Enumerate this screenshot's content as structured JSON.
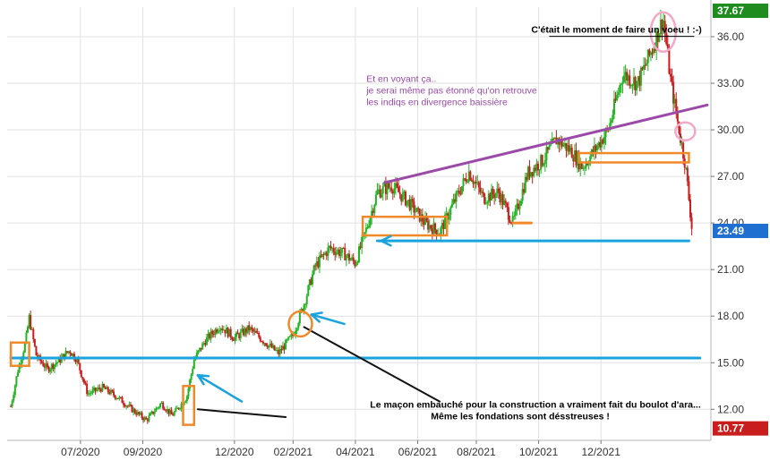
{
  "chart_data": {
    "type": "candlestick",
    "title": "",
    "xlabel": "",
    "ylabel": "",
    "ylim": [
      10.0,
      37.9
    ],
    "grid": true,
    "y_ticks": [
      12.0,
      15.0,
      18.0,
      21.0,
      24.0,
      27.0,
      30.0,
      33.0,
      36.0
    ],
    "y_tick_labels": [
      "12.00",
      "15.00",
      "18.00",
      "21.00",
      "24.00",
      "27.00",
      "30.00",
      "33.00",
      "36.00"
    ],
    "x_tick_labels": [
      "07/2020",
      "09/2020",
      "12/2020",
      "02/2021",
      "04/2021",
      "06/2021",
      "08/2021",
      "10/2021",
      "12/2021"
    ],
    "x_tick_months": [
      2020.5,
      2020.67,
      2020.92,
      2021.08,
      2021.25,
      2021.42,
      2021.58,
      2021.75,
      2021.92
    ],
    "x_range": [
      2020.3,
      2022.22
    ],
    "price_badges": [
      {
        "label": "37.67",
        "value": 37.67,
        "color": "#1e8c1e"
      },
      {
        "label": "23.49",
        "value": 23.49,
        "color": "#1f6fd1"
      },
      {
        "label": "10.77",
        "value": 10.77,
        "color": "#c81e1e"
      }
    ],
    "colors": {
      "up": "#22b422",
      "down": "#c81e1e",
      "support": "#1aa3dc",
      "trend": "#9b4aa8",
      "box": "#f0892a",
      "pink": "#f2a8c6"
    },
    "price_path": [
      {
        "t": 2020.31,
        "p": 12.2
      },
      {
        "t": 2020.33,
        "p": 14.6
      },
      {
        "t": 2020.35,
        "p": 16.3
      },
      {
        "t": 2020.36,
        "p": 17.9
      },
      {
        "t": 2020.38,
        "p": 15.4
      },
      {
        "t": 2020.41,
        "p": 14.6
      },
      {
        "t": 2020.44,
        "p": 15.1
      },
      {
        "t": 2020.47,
        "p": 15.8
      },
      {
        "t": 2020.49,
        "p": 15.2
      },
      {
        "t": 2020.52,
        "p": 13.0
      },
      {
        "t": 2020.56,
        "p": 13.4
      },
      {
        "t": 2020.6,
        "p": 12.8
      },
      {
        "t": 2020.64,
        "p": 12.0
      },
      {
        "t": 2020.68,
        "p": 11.3
      },
      {
        "t": 2020.72,
        "p": 12.4
      },
      {
        "t": 2020.75,
        "p": 11.6
      },
      {
        "t": 2020.79,
        "p": 12.8
      },
      {
        "t": 2020.81,
        "p": 15.2
      },
      {
        "t": 2020.84,
        "p": 16.4
      },
      {
        "t": 2020.88,
        "p": 17.4
      },
      {
        "t": 2020.92,
        "p": 16.6
      },
      {
        "t": 2020.96,
        "p": 17.2
      },
      {
        "t": 2021.0,
        "p": 16.4
      },
      {
        "t": 2021.04,
        "p": 15.6
      },
      {
        "t": 2021.08,
        "p": 16.8
      },
      {
        "t": 2021.11,
        "p": 18.8
      },
      {
        "t": 2021.14,
        "p": 21.2
      },
      {
        "t": 2021.18,
        "p": 22.4
      },
      {
        "t": 2021.22,
        "p": 22.0
      },
      {
        "t": 2021.25,
        "p": 21.4
      },
      {
        "t": 2021.28,
        "p": 23.6
      },
      {
        "t": 2021.31,
        "p": 26.0
      },
      {
        "t": 2021.35,
        "p": 26.4
      },
      {
        "t": 2021.4,
        "p": 25.2
      },
      {
        "t": 2021.44,
        "p": 24.0
      },
      {
        "t": 2021.48,
        "p": 23.4
      },
      {
        "t": 2021.52,
        "p": 25.4
      },
      {
        "t": 2021.56,
        "p": 27.3
      },
      {
        "t": 2021.6,
        "p": 25.6
      },
      {
        "t": 2021.64,
        "p": 26.0
      },
      {
        "t": 2021.68,
        "p": 24.0
      },
      {
        "t": 2021.72,
        "p": 27.2
      },
      {
        "t": 2021.76,
        "p": 28.0
      },
      {
        "t": 2021.8,
        "p": 29.4
      },
      {
        "t": 2021.84,
        "p": 28.6
      },
      {
        "t": 2021.87,
        "p": 27.6
      },
      {
        "t": 2021.9,
        "p": 28.6
      },
      {
        "t": 2021.94,
        "p": 30.0
      },
      {
        "t": 2021.98,
        "p": 33.6
      },
      {
        "t": 2022.02,
        "p": 33.0
      },
      {
        "t": 2022.06,
        "p": 35.2
      },
      {
        "t": 2022.09,
        "p": 37.2
      },
      {
        "t": 2022.11,
        "p": 33.2
      },
      {
        "t": 2022.13,
        "p": 30.4
      },
      {
        "t": 2022.15,
        "p": 27.8
      },
      {
        "t": 2022.16,
        "p": 25.6
      },
      {
        "t": 2022.17,
        "p": 23.2
      }
    ],
    "lines": [
      {
        "name": "support-line-lower",
        "kind": "support",
        "t1": 2020.31,
        "p1": 15.3,
        "t2": 2022.19,
        "p2": 15.3
      },
      {
        "name": "support-line-upper",
        "kind": "support",
        "t1": 2021.31,
        "p1": 22.85,
        "t2": 2022.16,
        "p2": 22.85
      },
      {
        "name": "trend-line",
        "kind": "trend",
        "t1": 2021.33,
        "p1": 26.6,
        "t2": 2022.21,
        "p2": 31.6
      },
      {
        "name": "black-line-short",
        "kind": "black",
        "t1": 2020.82,
        "p1": 12.0,
        "t2": 2021.06,
        "p2": 11.5
      },
      {
        "name": "black-line-long",
        "kind": "black",
        "t1": 2021.11,
        "p1": 17.3,
        "t2": 2021.48,
        "p2": 12.5
      },
      {
        "name": "orange-dash",
        "kind": "box",
        "t1": 2021.68,
        "p1": 24.0,
        "t2": 2021.73,
        "p2": 24.0
      }
    ],
    "boxes": [
      {
        "name": "orange-box-left",
        "t1": 2020.31,
        "t2": 2020.36,
        "p1": 16.3,
        "p2": 14.8
      },
      {
        "name": "orange-box-sept",
        "t1": 2020.78,
        "t2": 2020.81,
        "p1": 13.5,
        "p2": 11.0
      },
      {
        "name": "orange-box-apr",
        "t1": 2021.27,
        "t2": 2021.5,
        "p1": 24.4,
        "p2": 23.2
      },
      {
        "name": "orange-box-nov",
        "t1": 2021.86,
        "t2": 2022.16,
        "p1": 28.5,
        "p2": 27.9
      }
    ],
    "circles": [
      {
        "name": "orange-circle",
        "kind": "box",
        "t": 2021.1,
        "p": 17.5,
        "rx": 13,
        "ry": 14
      },
      {
        "name": "pink-ellipse-top",
        "kind": "pink",
        "t": 2022.09,
        "p": 36.3,
        "rx": 14,
        "ry": 22
      },
      {
        "name": "pink-circle",
        "kind": "pink",
        "t": 2022.15,
        "p": 29.9,
        "rx": 11,
        "ry": 10
      }
    ],
    "arrows": [
      {
        "name": "blue-arrow-sept",
        "t1": 2020.94,
        "p1": 12.5,
        "t2": 2020.82,
        "p2": 14.2
      },
      {
        "name": "blue-arrow-feb",
        "t1": 2021.22,
        "p1": 17.5,
        "t2": 2021.13,
        "p2": 18.1
      },
      {
        "name": "blue-arrow-apr",
        "t1": 2021.48,
        "p1": 22.85,
        "t2": 2021.32,
        "p2": 22.85
      }
    ],
    "annotations": [
      {
        "name": "wish-annotation",
        "lines": [
          "C'était le moment de faire un voeu ! :-)"
        ],
        "color": "#000000",
        "weight": "700",
        "t": 2021.73,
        "p": 36.25,
        "anchor": "start",
        "underline": true
      },
      {
        "name": "divergence-annotation",
        "lines": [
          "Et en voyant ça..",
          "je serai même pas étonné qu'on retrouve",
          "les indiqs en divergence baissière"
        ],
        "color": "#9b4aa8",
        "weight": "400",
        "t": 2021.28,
        "p": 33.1,
        "anchor": "start",
        "underline": false
      },
      {
        "name": "mason-annotation",
        "lines": [
          "Le maçon embauché pour la construction a vraiment fait du boulot d'ara...",
          "Même les fondations sont désstreuses !"
        ],
        "color": "#000000",
        "weight": "700",
        "t": 2021.29,
        "p": 12.1,
        "anchor": "start",
        "underline": false,
        "line2_offset": 68
      }
    ]
  }
}
